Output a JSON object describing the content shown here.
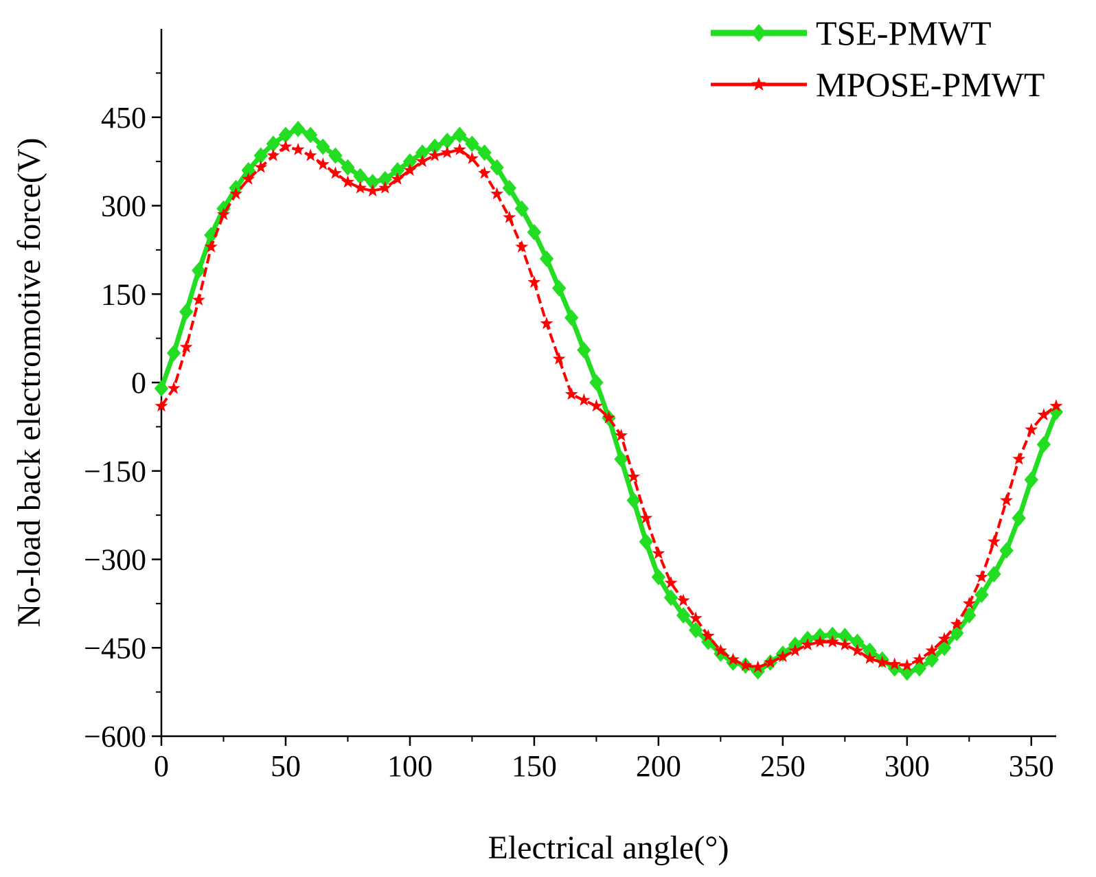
{
  "chart_data": {
    "type": "line",
    "title": "",
    "xlabel": "Electrical angle(°)",
    "ylabel": "No-load back electromotive force(V)",
    "xlim": [
      0,
      360
    ],
    "ylim": [
      -600,
      600
    ],
    "x_ticks": [
      0,
      50,
      100,
      150,
      200,
      250,
      300,
      350
    ],
    "x_tick_labels": [
      "0",
      "50",
      "100",
      "150",
      "200",
      "250",
      "300",
      "350"
    ],
    "y_ticks": [
      -600,
      -450,
      -300,
      -150,
      0,
      150,
      300,
      450
    ],
    "y_tick_labels": [
      "−600",
      "−450",
      "−300",
      "−150",
      "0",
      "150",
      "300",
      "450"
    ],
    "grid": false,
    "legend_position": "top-right",
    "series": [
      {
        "name": "TSE-PMWT",
        "color": "#22dd22",
        "marker": "diamond",
        "x": [
          0,
          5,
          10,
          15,
          20,
          25,
          30,
          35,
          40,
          45,
          50,
          55,
          60,
          65,
          70,
          75,
          80,
          85,
          90,
          95,
          100,
          105,
          110,
          115,
          120,
          125,
          130,
          135,
          140,
          145,
          150,
          155,
          160,
          165,
          170,
          175,
          180,
          185,
          190,
          195,
          200,
          205,
          210,
          215,
          220,
          225,
          230,
          235,
          240,
          245,
          250,
          255,
          260,
          265,
          270,
          275,
          280,
          285,
          290,
          295,
          300,
          305,
          310,
          315,
          320,
          325,
          330,
          335,
          340,
          345,
          350,
          355,
          360
        ],
        "values": [
          -10,
          50,
          120,
          190,
          250,
          295,
          330,
          360,
          385,
          405,
          420,
          430,
          420,
          400,
          385,
          365,
          350,
          340,
          345,
          360,
          375,
          390,
          400,
          410,
          420,
          405,
          390,
          365,
          330,
          295,
          255,
          210,
          160,
          110,
          55,
          0,
          -60,
          -130,
          -200,
          -270,
          -330,
          -365,
          -395,
          -420,
          -440,
          -460,
          -475,
          -480,
          -490,
          -475,
          -460,
          -445,
          -435,
          -430,
          -428,
          -430,
          -440,
          -455,
          -470,
          -485,
          -492,
          -485,
          -470,
          -450,
          -425,
          -395,
          -360,
          -325,
          -285,
          -230,
          -165,
          -105,
          -50
        ]
      },
      {
        "name": "MPOSE-PMWT",
        "color": "#ff0000",
        "marker": "star",
        "x": [
          0,
          5,
          10,
          15,
          20,
          25,
          30,
          35,
          40,
          45,
          50,
          55,
          60,
          65,
          70,
          75,
          80,
          85,
          90,
          95,
          100,
          105,
          110,
          115,
          120,
          125,
          130,
          135,
          140,
          145,
          150,
          155,
          160,
          165,
          170,
          175,
          180,
          185,
          190,
          195,
          200,
          205,
          210,
          215,
          220,
          225,
          230,
          235,
          240,
          245,
          250,
          255,
          260,
          265,
          270,
          275,
          280,
          285,
          290,
          295,
          300,
          305,
          310,
          315,
          320,
          325,
          330,
          335,
          340,
          345,
          350,
          355,
          360
        ],
        "values": [
          -40,
          -10,
          60,
          140,
          230,
          285,
          320,
          345,
          365,
          385,
          400,
          395,
          385,
          370,
          355,
          340,
          330,
          325,
          330,
          345,
          360,
          375,
          385,
          390,
          395,
          380,
          355,
          320,
          280,
          230,
          170,
          100,
          40,
          -20,
          -30,
          -40,
          -60,
          -90,
          -160,
          -230,
          -290,
          -340,
          -370,
          -400,
          -430,
          -455,
          -470,
          -480,
          -483,
          -475,
          -465,
          -455,
          -445,
          -440,
          -440,
          -445,
          -455,
          -468,
          -475,
          -478,
          -480,
          -470,
          -455,
          -435,
          -410,
          -375,
          -330,
          -270,
          -200,
          -130,
          -80,
          -55,
          -40
        ]
      }
    ]
  }
}
